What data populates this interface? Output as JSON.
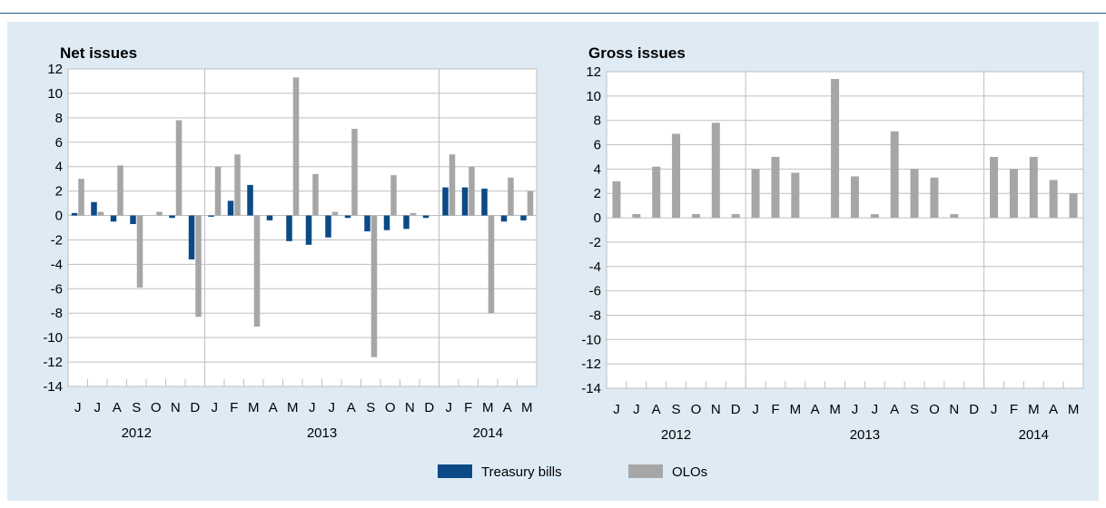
{
  "colors": {
    "treasury": "#0b4a86",
    "olo": "#a6a6a6",
    "grid": "#bfbfbf",
    "axis": "#7f7f7f",
    "text": "#000000"
  },
  "legend": {
    "items": [
      {
        "name": "Treasury bills",
        "color": "#0b4a86"
      },
      {
        "name": "OLOs",
        "color": "#a6a6a6"
      }
    ]
  },
  "chart_data": [
    {
      "type": "bar",
      "title": "Net issues",
      "ylim": [
        -14,
        12
      ],
      "yticks": [
        12,
        10,
        8,
        6,
        4,
        2,
        0,
        -2,
        -4,
        -6,
        -8,
        -10,
        -12,
        -14
      ],
      "grid": true,
      "legend": "bottom-center",
      "categories": [
        "J",
        "J",
        "A",
        "S",
        "O",
        "N",
        "D",
        "J",
        "F",
        "M",
        "A",
        "M",
        "J",
        "J",
        "A",
        "S",
        "O",
        "N",
        "D",
        "J",
        "F",
        "M",
        "A",
        "M"
      ],
      "year_groups": [
        {
          "label": "2012",
          "start": 0,
          "count": 7
        },
        {
          "label": "2013",
          "start": 7,
          "count": 12
        },
        {
          "label": "2014",
          "start": 19,
          "count": 5
        }
      ],
      "series": [
        {
          "name": "Treasury bills",
          "values": [
            0.2,
            1.1,
            -0.5,
            -0.7,
            0.0,
            -0.2,
            -3.6,
            -0.1,
            1.2,
            2.5,
            -0.4,
            -2.1,
            -2.4,
            -1.8,
            -0.2,
            -1.3,
            -1.2,
            -1.1,
            -0.2,
            2.3,
            2.3,
            2.2,
            -0.5,
            -0.4
          ]
        },
        {
          "name": "OLOs",
          "values": [
            3.0,
            0.3,
            4.1,
            -5.9,
            0.3,
            7.8,
            -8.3,
            4.0,
            5.0,
            -9.1,
            0.0,
            11.3,
            3.4,
            0.3,
            7.1,
            -11.6,
            3.3,
            0.2,
            0.0,
            5.0,
            4.0,
            -8.0,
            3.1,
            2.0
          ]
        }
      ]
    },
    {
      "type": "bar",
      "title": "Gross issues",
      "ylim": [
        -14,
        12
      ],
      "yticks": [
        12,
        10,
        8,
        6,
        4,
        2,
        0,
        -2,
        -4,
        -6,
        -8,
        -10,
        -12,
        -14
      ],
      "grid": true,
      "legend": "bottom-center",
      "categories": [
        "J",
        "J",
        "A",
        "S",
        "O",
        "N",
        "D",
        "J",
        "F",
        "M",
        "A",
        "M",
        "J",
        "J",
        "A",
        "S",
        "O",
        "N",
        "D",
        "J",
        "F",
        "M",
        "A",
        "M"
      ],
      "year_groups": [
        {
          "label": "2012",
          "start": 0,
          "count": 7
        },
        {
          "label": "2013",
          "start": 7,
          "count": 12
        },
        {
          "label": "2014",
          "start": 19,
          "count": 5
        }
      ],
      "series": [
        {
          "name": "OLOs",
          "values": [
            3.0,
            0.3,
            4.2,
            6.9,
            0.3,
            7.8,
            0.3,
            4.0,
            5.0,
            3.7,
            0.0,
            11.4,
            3.4,
            0.3,
            7.1,
            4.0,
            3.3,
            0.3,
            0.0,
            5.0,
            4.0,
            5.0,
            3.1,
            2.0
          ]
        }
      ]
    }
  ]
}
